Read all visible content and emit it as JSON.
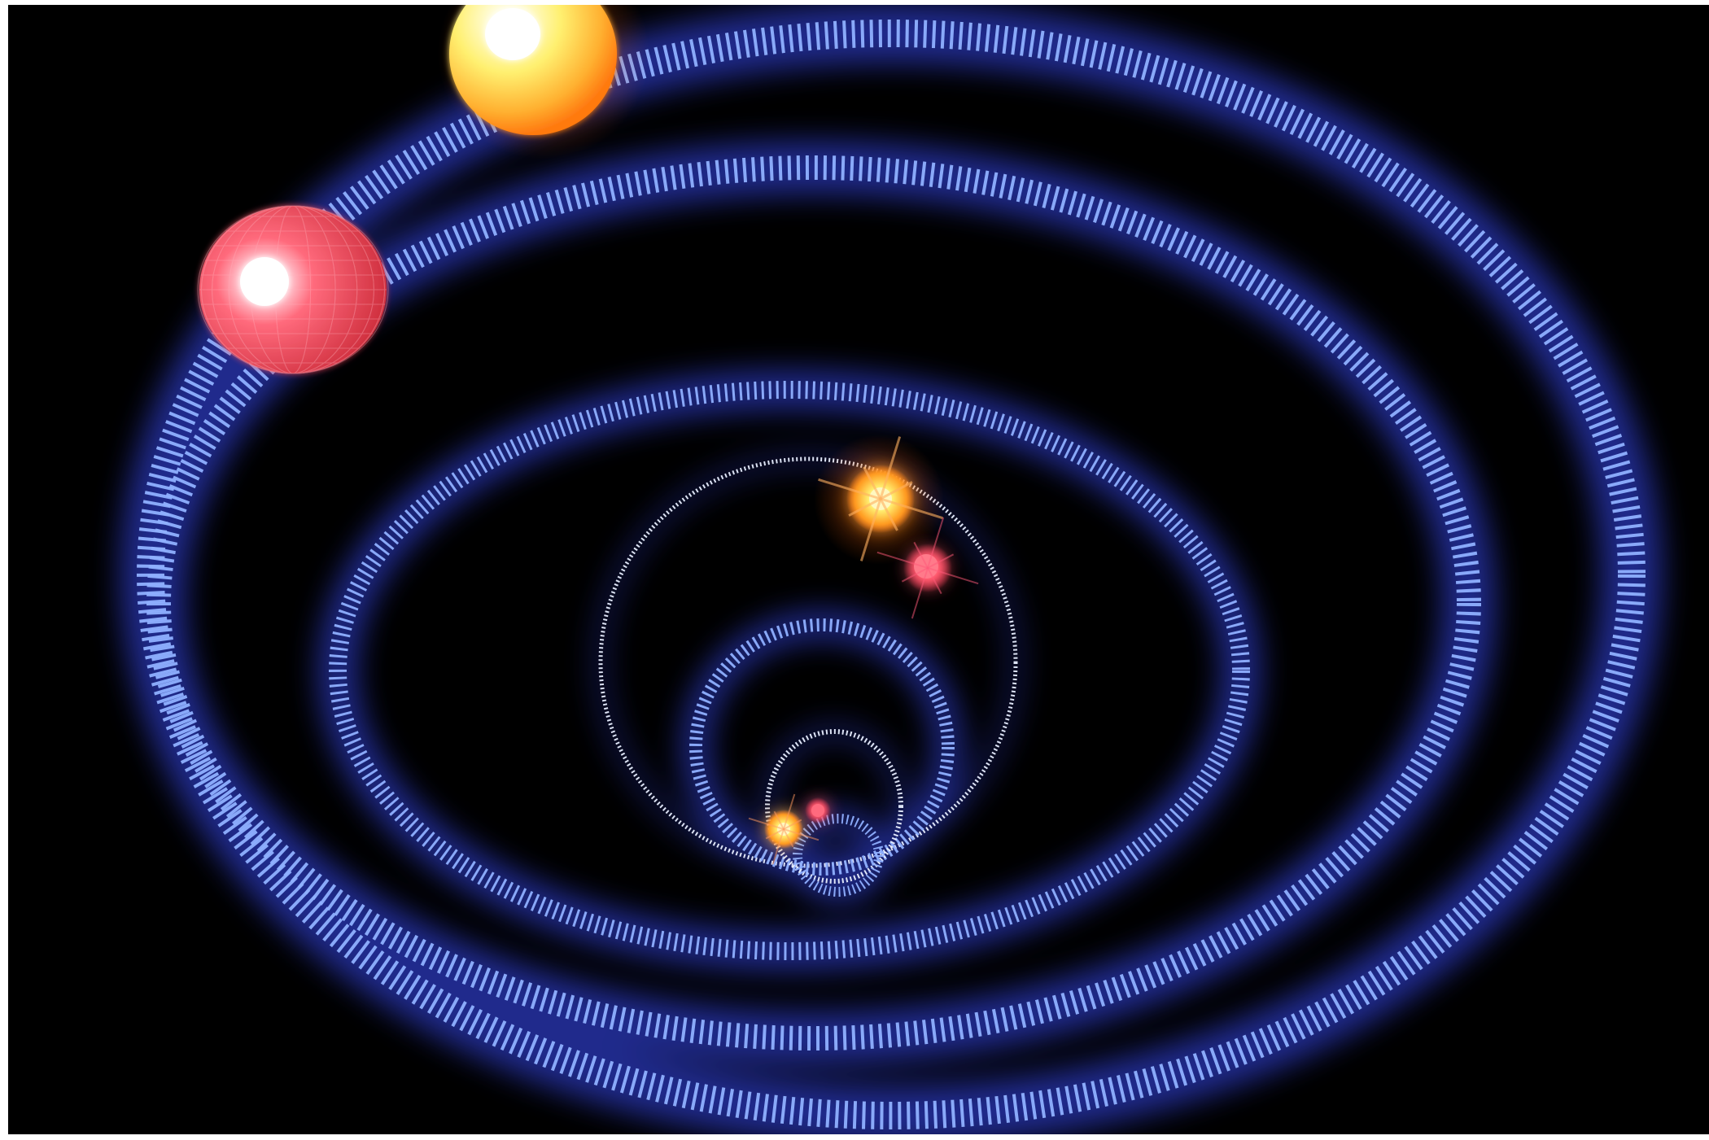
{
  "scene": {
    "description_label": "",
    "colors": {
      "background": "#000000",
      "frame": "#ffffff",
      "ring_primary": "#8fb0ff",
      "ring_glow": "#3a4dff",
      "ring_inner_white": "#e8eeff",
      "star_red": "#ff5a6e",
      "star_orange": "#ffb020",
      "star_yellow": "#fff27a",
      "core_white": "#ffffff"
    },
    "objects": [
      {
        "name": "red-star-large",
        "kind": "red-star"
      },
      {
        "name": "orange-star-large",
        "kind": "orange-star"
      },
      {
        "name": "orange-star-mid",
        "kind": "orange-star"
      },
      {
        "name": "red-star-mid",
        "kind": "red-star"
      },
      {
        "name": "orange-star-small",
        "kind": "orange-star"
      },
      {
        "name": "red-star-small",
        "kind": "red-star"
      }
    ]
  }
}
